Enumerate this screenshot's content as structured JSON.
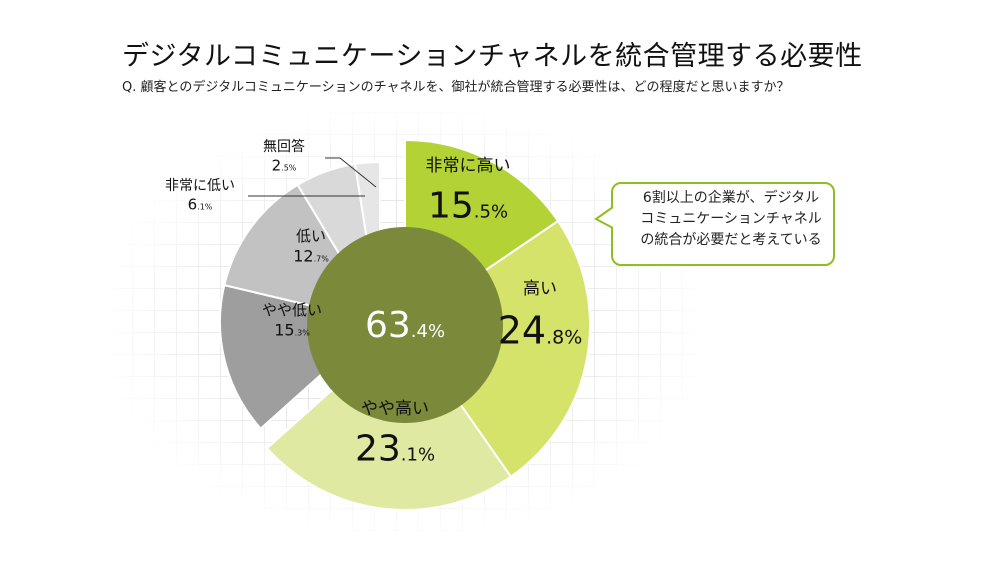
{
  "title": "デジタルコミュニケーションチャネルを統合管理する必要性",
  "question": "Q. 顧客とのデジタルコミュニケーションのチャネルを、御社が統合管理する必要性は、どの程度だと思いますか？",
  "callout": {
    "lines": [
      "6割以上の企業が、デジタル",
      "コミュニケーションチャネル",
      "の統合が必要だと考えている"
    ]
  },
  "chart_data": {
    "type": "pie",
    "title": "デジタルコミュニケーションチャネルを統合管理する必要性",
    "unit": "%",
    "center_total": {
      "integer": "63",
      "decimal": ".4%",
      "value": 63.4
    },
    "slices": [
      {
        "label": "非常に高い",
        "value": 15.5,
        "integer": "15",
        "decimal": ".5%",
        "color": "#b2d235"
      },
      {
        "label": "高い",
        "value": 24.8,
        "integer": "24",
        "decimal": ".8%",
        "color": "#d5e36b"
      },
      {
        "label": "やや高い",
        "value": 23.1,
        "integer": "23",
        "decimal": ".1%",
        "color": "#dfe9a2"
      },
      {
        "label": "やや低い",
        "value": 15.3,
        "integer": "15",
        "decimal": ".3%",
        "color": "#9e9e9e"
      },
      {
        "label": "低い",
        "value": 12.7,
        "integer": "12",
        "decimal": ".7%",
        "color": "#c2c2c2"
      },
      {
        "label": "非常に低い",
        "value": 6.1,
        "integer": "6",
        "decimal": ".1%",
        "color": "#d9d9d9"
      },
      {
        "label": "無回答",
        "value": 2.5,
        "integer": "2",
        "decimal": ".5%",
        "color": "#e6e6e6"
      }
    ],
    "inner_color": "#7a8a3a"
  }
}
